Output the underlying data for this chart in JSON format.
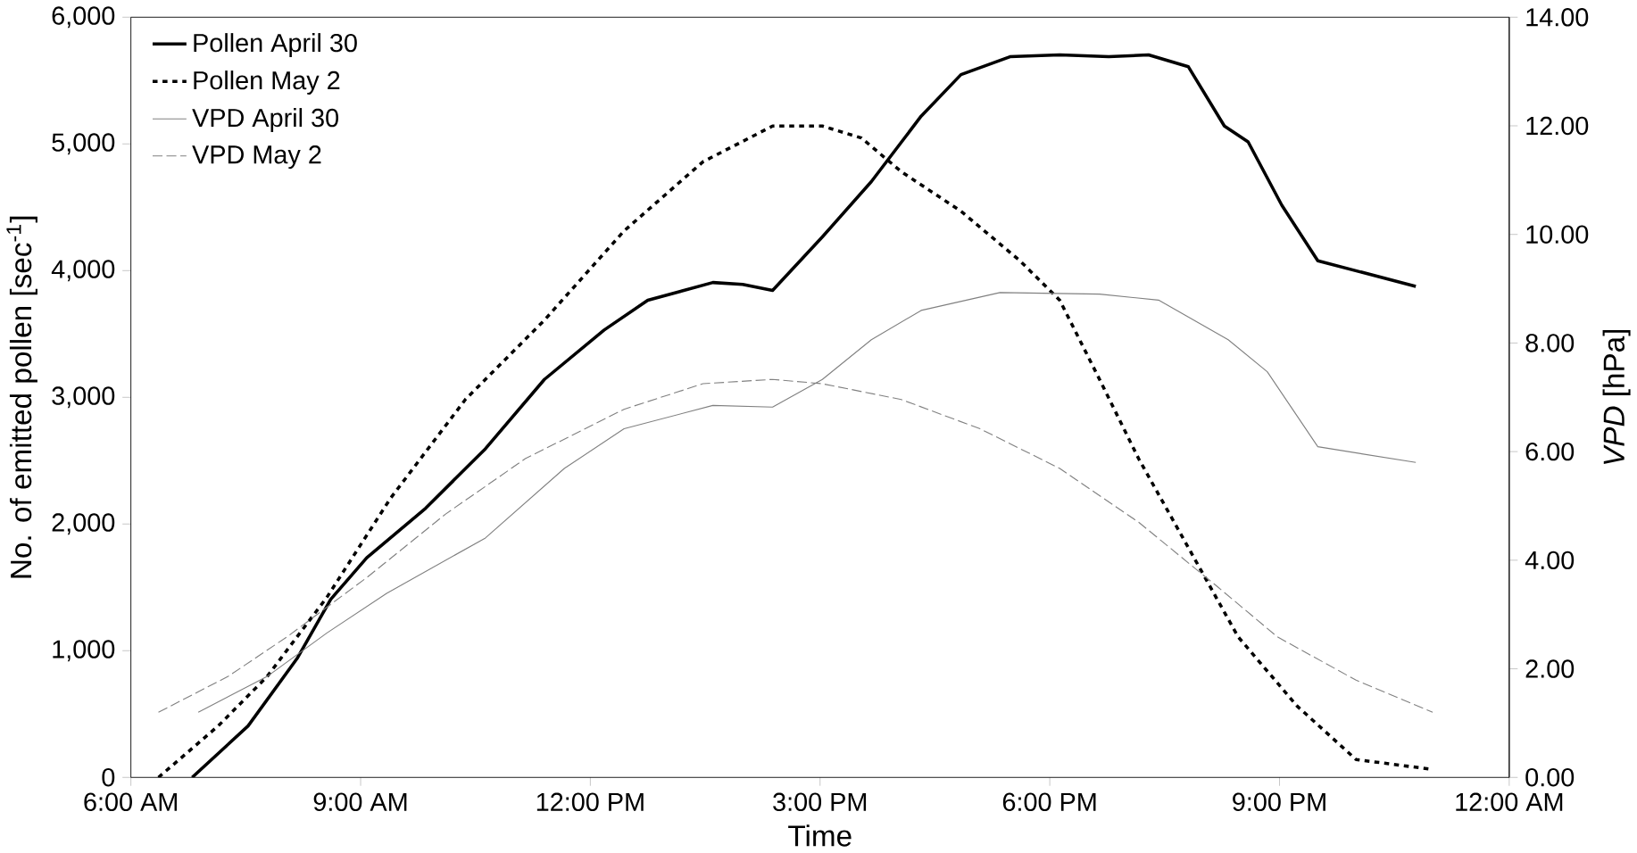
{
  "chart_data": {
    "type": "line",
    "xlabel": "Time",
    "ylabel": "No. of emitted pollen [sec$^{-1}$]",
    "y2label": "*VPD* [hPa]",
    "xlim": [
      6,
      24
    ],
    "xticks": [
      {
        "value": 6,
        "label": "6:00 AM"
      },
      {
        "value": 9,
        "label": "9:00 AM"
      },
      {
        "value": 12,
        "label": "12:00 PM"
      },
      {
        "value": 15,
        "label": "3:00 PM"
      },
      {
        "value": 18,
        "label": "6:00 PM"
      },
      {
        "value": 21,
        "label": "9:00 PM"
      },
      {
        "value": 24,
        "label": "12:00 AM"
      }
    ],
    "ylim": [
      0,
      6000
    ],
    "yticks": [
      {
        "value": 0,
        "label": "0"
      },
      {
        "value": 1000,
        "label": "1,000"
      },
      {
        "value": 2000,
        "label": "2,000"
      },
      {
        "value": 3000,
        "label": "3,000"
      },
      {
        "value": 4000,
        "label": "4,000"
      },
      {
        "value": 5000,
        "label": "5,000"
      },
      {
        "value": 6000,
        "label": "6,000"
      }
    ],
    "y2lim": [
      0,
      14
    ],
    "y2ticks": [
      {
        "value": 0,
        "label": "0.00"
      },
      {
        "value": 2,
        "label": "2.00"
      },
      {
        "value": 4,
        "label": "4.00"
      },
      {
        "value": 6,
        "label": "6.00"
      },
      {
        "value": 8,
        "label": "8.00"
      },
      {
        "value": 10,
        "label": "10.00"
      },
      {
        "value": 12,
        "label": "12.00"
      },
      {
        "value": 14,
        "label": "14.00"
      }
    ],
    "legend": "top left",
    "grid": false,
    "marker": "none",
    "series": [
      {
        "name": "Pollen April 30",
        "color": "#000000",
        "line_style": "solid",
        "x": [
          6.8,
          7.53,
          8.17,
          8.61,
          9.08,
          9.85,
          10.63,
          11.4,
          12.18,
          12.75,
          13.6,
          13.99,
          14.38,
          15.03,
          15.67,
          16.32,
          16.84,
          17.48,
          18.13,
          18.77,
          19.29,
          19.81,
          20.28,
          20.59,
          21.03,
          21.5,
          22.78
        ],
        "values": [
          0,
          406,
          938,
          1406,
          1734,
          2125,
          2594,
          3141,
          3531,
          3766,
          3906,
          3891,
          3844,
          4266,
          4703,
          5219,
          5547,
          5688,
          5703,
          5688,
          5703,
          5609,
          5141,
          5016,
          4516,
          4078,
          3875
        ]
      },
      {
        "name": "Pollen May 2",
        "color": "#000000",
        "line_style": "dotted",
        "x": [
          6.36,
          7.14,
          7.78,
          8.56,
          9.39,
          10.37,
          11.4,
          12.44,
          13.47,
          14.38,
          15.03,
          15.54,
          16.06,
          16.84,
          17.61,
          18.13,
          18.65,
          19.16,
          19.81,
          20.46,
          21.23,
          22.0,
          23.0
        ],
        "values": [
          0,
          406,
          797,
          1422,
          2203,
          2984,
          3609,
          4313,
          4859,
          5141,
          5141,
          5047,
          4781,
          4469,
          4078,
          3766,
          3141,
          2516,
          1813,
          1109,
          563,
          141,
          63
        ]
      },
      {
        "name": "VPD April 30",
        "color": "#808080",
        "line_style": "solid",
        "axis": "y2",
        "x": [
          6.88,
          7.78,
          8.56,
          9.34,
          10.63,
          11.66,
          12.44,
          13.6,
          14.38,
          15.03,
          15.67,
          16.32,
          17.35,
          18.65,
          19.42,
          20.33,
          20.84,
          21.5,
          22.78
        ],
        "values": [
          1.2,
          1.86,
          2.66,
          3.39,
          4.41,
          5.69,
          6.42,
          6.85,
          6.82,
          7.33,
          8.06,
          8.6,
          8.93,
          8.9,
          8.79,
          8.06,
          7.47,
          6.09,
          5.8
        ]
      },
      {
        "name": "VPD May 2",
        "color": "#808080",
        "line_style": "dashed",
        "axis": "y2",
        "x": [
          6.36,
          7.27,
          8.04,
          9.08,
          10.11,
          11.15,
          12.44,
          13.47,
          14.38,
          15.03,
          16.06,
          17.09,
          18.13,
          19.16,
          20.2,
          20.97,
          22.0,
          23.0
        ],
        "values": [
          1.2,
          1.86,
          2.59,
          3.68,
          4.85,
          5.87,
          6.78,
          7.25,
          7.33,
          7.25,
          6.96,
          6.42,
          5.69,
          4.7,
          3.5,
          2.59,
          1.79,
          1.2
        ]
      }
    ]
  }
}
